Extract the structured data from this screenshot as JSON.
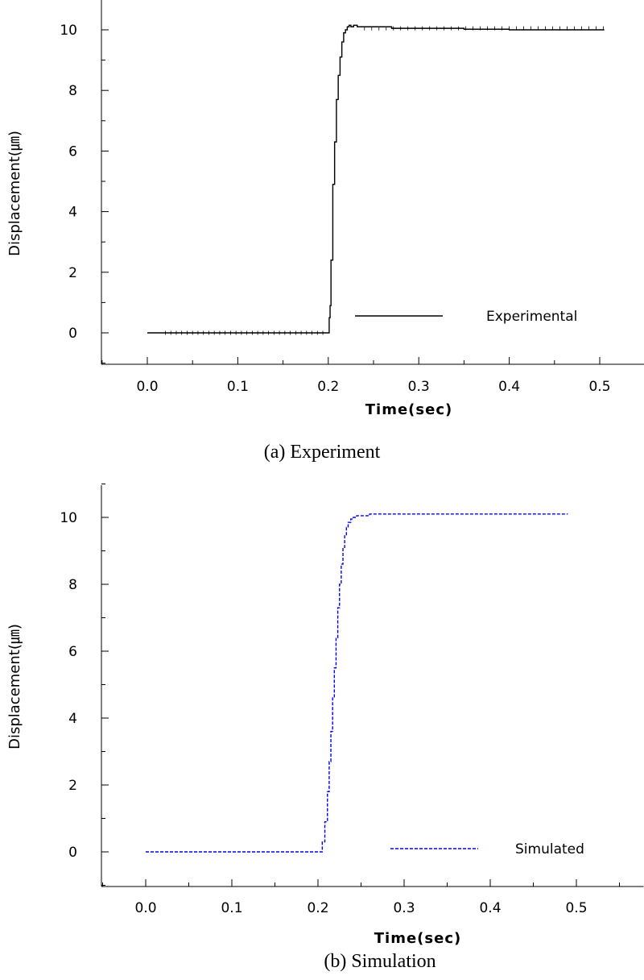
{
  "chart_data": [
    {
      "type": "line",
      "caption": "(a) Experiment",
      "xlabel": "Time(sec)",
      "ylabel": "Displacement(㎛)",
      "xlim": [
        -0.05,
        0.55
      ],
      "ylim": [
        -1.0,
        11.0
      ],
      "xticks": [
        0.0,
        0.1,
        0.2,
        0.3,
        0.4,
        0.5
      ],
      "xtick_labels": [
        "0.0",
        "0.1",
        "0.2",
        "0.3",
        "0.4",
        "0.5"
      ],
      "yticks": [
        0,
        2,
        4,
        6,
        8,
        10
      ],
      "ytick_labels": [
        "0",
        "2",
        "4",
        "6",
        "8",
        "10"
      ],
      "legend": "Experimental",
      "series": [
        {
          "name": "Experimental",
          "color": "#000000",
          "dash": "solid",
          "x": [
            0.0,
            0.05,
            0.1,
            0.15,
            0.199,
            0.201,
            0.202,
            0.203,
            0.205,
            0.207,
            0.209,
            0.211,
            0.213,
            0.215,
            0.217,
            0.219,
            0.221,
            0.223,
            0.225,
            0.228,
            0.232,
            0.24,
            0.27,
            0.3,
            0.35,
            0.4,
            0.45,
            0.505
          ],
          "y": [
            0.0,
            0.0,
            0.0,
            0.0,
            0.0,
            0.5,
            0.9,
            2.4,
            4.9,
            6.3,
            7.7,
            8.5,
            9.1,
            9.6,
            9.9,
            10.0,
            10.1,
            10.15,
            10.1,
            10.15,
            10.1,
            10.1,
            10.05,
            10.05,
            10.02,
            10.0,
            10.0,
            10.0
          ]
        }
      ]
    },
    {
      "type": "line",
      "caption": "(b) Simulation",
      "xlabel": "Time(sec)",
      "ylabel": "Displacement(㎛)",
      "xlim": [
        -0.05,
        0.55
      ],
      "ylim": [
        -1.0,
        11.0
      ],
      "xticks": [
        0.0,
        0.1,
        0.2,
        0.3,
        0.4,
        0.5
      ],
      "xtick_labels": [
        "0.0",
        "0.1",
        "0.2",
        "0.3",
        "0.4",
        "0.5"
      ],
      "yticks": [
        0,
        2,
        4,
        6,
        8,
        10
      ],
      "ytick_labels": [
        "0",
        "2",
        "4",
        "6",
        "8",
        "10"
      ],
      "legend": "Simulated",
      "series": [
        {
          "name": "Simulated",
          "color": "#0000ff",
          "dash": "dashed",
          "x": [
            0.0,
            0.1,
            0.203,
            0.205,
            0.208,
            0.211,
            0.213,
            0.215,
            0.217,
            0.219,
            0.221,
            0.223,
            0.225,
            0.227,
            0.229,
            0.231,
            0.233,
            0.235,
            0.238,
            0.241,
            0.245,
            0.25,
            0.26,
            0.27,
            0.3,
            0.4,
            0.49
          ],
          "y": [
            0.0,
            0.0,
            0.0,
            0.3,
            0.9,
            1.8,
            2.7,
            3.6,
            4.6,
            5.5,
            6.4,
            7.3,
            8.0,
            8.6,
            9.1,
            9.45,
            9.7,
            9.85,
            9.95,
            10.0,
            10.05,
            10.05,
            10.1,
            10.1,
            10.1,
            10.1,
            10.1
          ]
        }
      ]
    }
  ]
}
